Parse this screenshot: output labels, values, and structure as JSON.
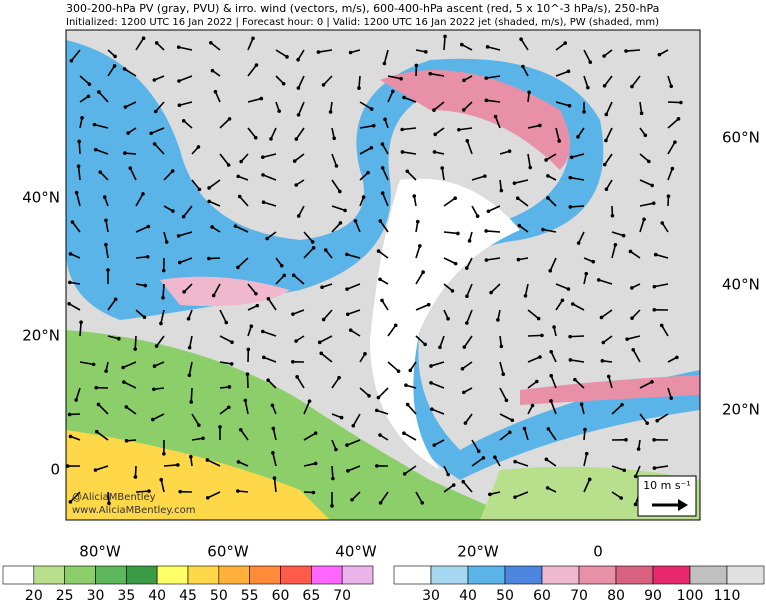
{
  "header": {
    "line1": "300-200-hPa PV (gray, PVU) & irro. wind (vectors, m/s), 600-400-hPa ascent (red, 5 x 10^-3 hPa/s), 250-hPa",
    "line2": "Initialized: 1200 UTC 16 Jan 2022 | Forecast hour: 0 | Valid: 1200 UTC 16 Jan 2022 jet (shaded, m/s), PW (shaded, mm)"
  },
  "left_lat_labels": [
    "40°N",
    "20°N",
    "0"
  ],
  "right_lat_labels": [
    "60°N",
    "40°N",
    "20°N"
  ],
  "lon_labels": [
    "80°W",
    "60°W",
    "40°W",
    "20°W",
    "0"
  ],
  "reference_vector": "10 m s⁻¹",
  "credits": [
    "@AliciaMBentley",
    "www.AliciaMBentley.com"
  ],
  "pw_colorbar": {
    "labels": [
      20,
      25,
      30,
      35,
      40,
      45,
      50,
      55,
      60,
      65,
      70
    ],
    "colors": [
      "#ffffff",
      "#b8e08c",
      "#8ccf6a",
      "#5cb85a",
      "#3a9a45",
      "#ffff66",
      "#ffd84a",
      "#ffb13a",
      "#ff8a3a",
      "#ff5a4a",
      "#ff66ff",
      "#eab3ea"
    ]
  },
  "jet_colorbar": {
    "labels": [
      30,
      40,
      50,
      60,
      70,
      80,
      90,
      100,
      110
    ],
    "colors": [
      "#ffffff",
      "#a5d8f0",
      "#5ab4e8",
      "#4c86e0",
      "#f0b8cc",
      "#e890a8",
      "#d86080",
      "#e8286a",
      "#c0c0c0",
      "#e0e0e0"
    ]
  }
}
